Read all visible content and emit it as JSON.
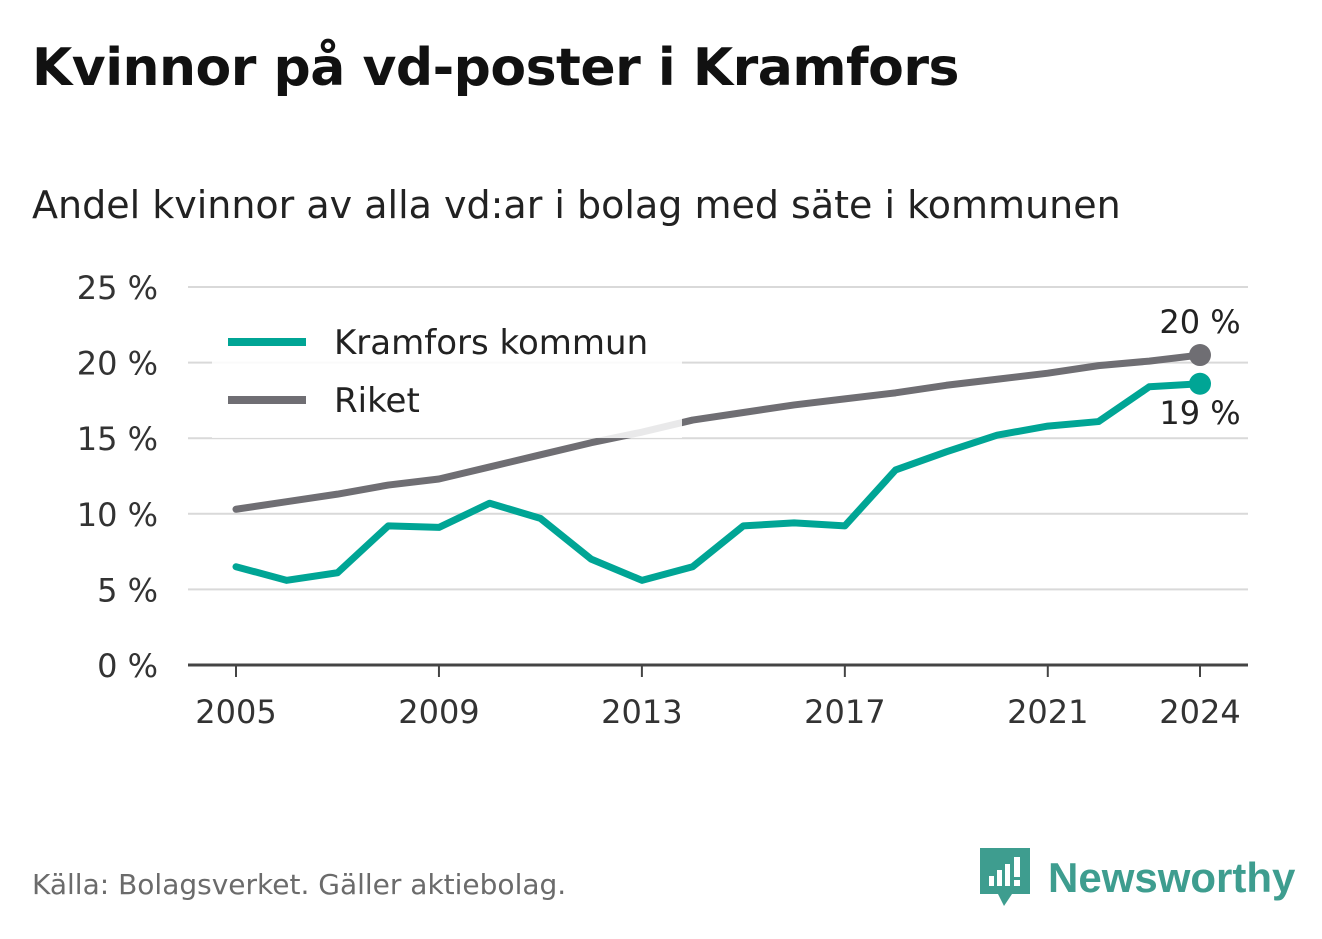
{
  "title": "Kvinnor på vd-poster i Kramfors",
  "subtitle": "Andel kvinnor av alla vd:ar i bolag med säte i kommunen",
  "footer": "Källa: Bolagsverket. Gäller aktiebolag.",
  "brand": {
    "name": "Newsworthy",
    "icon": "newsworthy-logo-icon",
    "color": "#3e9d8f"
  },
  "chart_data": {
    "type": "line",
    "ylim": [
      0,
      25
    ],
    "xlim": [
      2005,
      2024
    ],
    "yticks": [
      0,
      5,
      10,
      15,
      20,
      25
    ],
    "ytick_labels": [
      "0 %",
      "5 %",
      "10 %",
      "15 %",
      "20 %",
      "25 %"
    ],
    "xticks": [
      2005,
      2009,
      2013,
      2017,
      2021,
      2024
    ],
    "xtick_labels": [
      "2005",
      "2009",
      "2013",
      "2017",
      "2021",
      "2024"
    ],
    "grid": true,
    "legend_position": "top-left",
    "x": [
      2005,
      2006,
      2007,
      2008,
      2009,
      2010,
      2011,
      2012,
      2013,
      2014,
      2015,
      2016,
      2017,
      2018,
      2019,
      2020,
      2021,
      2022,
      2023,
      2024
    ],
    "series": [
      {
        "name": "Kramfors kommun",
        "color": "#00a595",
        "values": [
          6.5,
          5.6,
          6.1,
          9.2,
          9.1,
          10.7,
          9.7,
          7.0,
          5.6,
          6.5,
          9.2,
          9.4,
          9.2,
          12.9,
          14.1,
          15.2,
          15.8,
          16.1,
          18.4,
          18.6
        ],
        "end_label": "19 %"
      },
      {
        "name": "Riket",
        "color": "#6f6e73",
        "values": [
          10.3,
          10.8,
          11.3,
          11.9,
          12.3,
          13.1,
          13.9,
          14.7,
          15.4,
          16.2,
          16.7,
          17.2,
          17.6,
          18.0,
          18.5,
          18.9,
          19.3,
          19.8,
          20.1,
          20.5
        ],
        "end_label": "20 %"
      }
    ]
  }
}
